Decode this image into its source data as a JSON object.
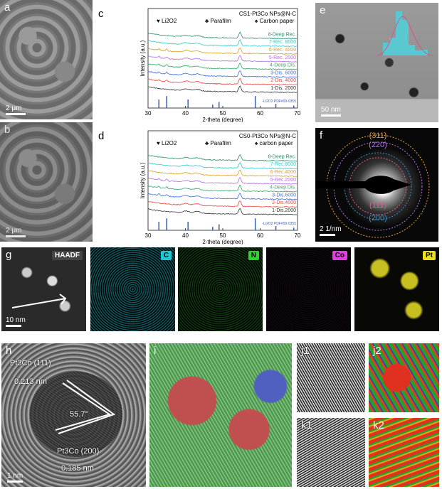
{
  "panels": {
    "a": {
      "label": "a",
      "scale": "2 μm"
    },
    "b": {
      "label": "b",
      "scale": "2 μm"
    },
    "c": {
      "label": "c"
    },
    "d": {
      "label": "d"
    },
    "e": {
      "label": "e",
      "scale": "50 nm"
    },
    "f": {
      "label": "f",
      "scale": "2 1/nm",
      "rings": [
        {
          "hkl": "(311)",
          "color": "#e8a040"
        },
        {
          "hkl": "(220)",
          "color": "#b47ad8"
        },
        {
          "hkl": "(111)",
          "color": "#e0608a"
        },
        {
          "hkl": "(200)",
          "color": "#3a90d0"
        }
      ]
    },
    "g": {
      "label": "g",
      "scale": "10 nm",
      "maps": [
        {
          "tag": "HAADF",
          "color": "#ffffff",
          "bg": "#111111"
        },
        {
          "tag": "C",
          "color": "#20c8d0",
          "bg": "#0e5a60"
        },
        {
          "tag": "N",
          "color": "#30d030",
          "bg": "#0f3a0f"
        },
        {
          "tag": "Co",
          "color": "#e040e0",
          "bg": "#120812"
        },
        {
          "tag": "Pt",
          "color": "#e8e020",
          "bg": "#0a0a04"
        }
      ]
    },
    "h": {
      "label": "h",
      "scale": "1 nm",
      "plane1": "Pt3Co (111)",
      "d1": "0.213 nm",
      "angle": "55.7°",
      "plane2": "Pt3Co (200)",
      "d2": "0.185 nm"
    },
    "i": {
      "label": "i"
    },
    "j1": {
      "label": "j1"
    },
    "j2": {
      "label": "j2"
    },
    "k1": {
      "label": "k1"
    },
    "k2": {
      "label": "k2"
    }
  },
  "chart_data": [
    {
      "type": "line",
      "panel": "c",
      "title": "CS1-Pt3Co NPs@N-C",
      "xlabel": "2-theta (degree)",
      "ylabel": "Intensity (a.u.)",
      "xlim": [
        30,
        70
      ],
      "xticks": [
        30,
        40,
        50,
        60,
        70
      ],
      "legend_markers": [
        "♥ Li2O2",
        "♣ Parafilm",
        "♠ Carbon paper"
      ],
      "reference": {
        "name": "-Li2O2 PDF#09-0355",
        "peaks": [
          32.9,
          35.0,
          40.7,
          47.3,
          49.0,
          58.7,
          64.2,
          69.0
        ],
        "color": "#3a5fb0"
      },
      "series": [
        {
          "name": "1-Dis. 2000",
          "color": "#333333",
          "li2o2": false
        },
        {
          "name": "2-Dis. 4000",
          "color": "#e8453c",
          "li2o2": true
        },
        {
          "name": "3-Dis. 6000",
          "color": "#3a6fd8",
          "li2o2": true
        },
        {
          "name": "4-Deep Dis.",
          "color": "#2ea866",
          "li2o2": true
        },
        {
          "name": "5-Rec. 2000",
          "color": "#b36be0",
          "li2o2": true
        },
        {
          "name": "6-Rec. 4000",
          "color": "#d9a020",
          "li2o2": true
        },
        {
          "name": "7-Rec. 8000",
          "color": "#2cc9d0",
          "li2o2": false
        },
        {
          "name": "8-Deep Rec.",
          "color": "#2a8a6a",
          "li2o2": false
        }
      ]
    },
    {
      "type": "line",
      "panel": "d",
      "title": "CS0-Pt3Co NPs@N-C",
      "xlabel": "2-theta (degree)",
      "ylabel": "Intensity (a.u.)",
      "xlim": [
        30,
        70
      ],
      "xticks": [
        30,
        40,
        50,
        60,
        70
      ],
      "legend_markers": [
        "♥ Li2O2",
        "♣ Parafilm",
        "♠ carbon paper"
      ],
      "reference": {
        "name": "-Li2O2 PDF#09-0355",
        "peaks": [
          32.9,
          35.0,
          40.7,
          47.3,
          49.0,
          58.7,
          64.2,
          69.0
        ],
        "color": "#3a5fb0"
      },
      "series": [
        {
          "name": "1-Dis.2000",
          "color": "#333333",
          "li2o2": false
        },
        {
          "name": "2-Dis.4000",
          "color": "#e8453c",
          "li2o2": false
        },
        {
          "name": "3-Dis.6000",
          "color": "#3a6fd8",
          "li2o2": true
        },
        {
          "name": "4-Deep Dis.",
          "color": "#2ea866",
          "li2o2": true
        },
        {
          "name": "5-Rec.2000",
          "color": "#b36be0",
          "li2o2": true
        },
        {
          "name": "6-Rec.4000",
          "color": "#d9a020",
          "li2o2": false
        },
        {
          "name": "7-Rec.8000",
          "color": "#2cc9d0",
          "li2o2": false
        },
        {
          "name": "8-Deep Rec.",
          "color": "#2a8a6a",
          "li2o2": false
        }
      ]
    }
  ]
}
